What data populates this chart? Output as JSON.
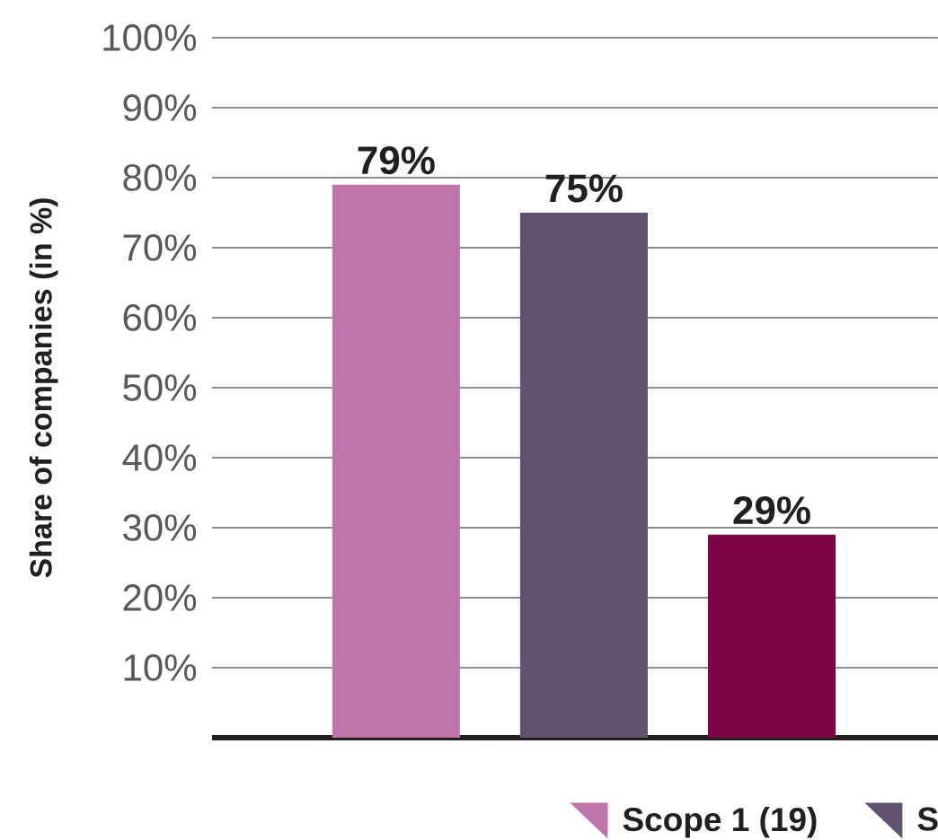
{
  "chart_data": {
    "type": "bar",
    "ylabel": "Share of companies (in %)",
    "categories": [
      null
    ],
    "series": [
      {
        "name": "Scope 1 (19)",
        "color": "#bf75a9",
        "values": [
          79
        ],
        "value_labels": [
          "79%"
        ]
      },
      {
        "name": "S",
        "color": "#605270",
        "values": [
          75
        ],
        "value_labels": [
          "75%"
        ]
      },
      {
        "color": "#7d0545",
        "values": [
          29
        ],
        "value_labels": [
          "29%"
        ]
      }
    ],
    "ylim": [
      0,
      100
    ],
    "yticks": [
      {
        "value": 10,
        "label": "10%"
      },
      {
        "value": 20,
        "label": "20%"
      },
      {
        "value": 30,
        "label": "30%"
      },
      {
        "value": 40,
        "label": "40%"
      },
      {
        "value": 50,
        "label": "50%"
      },
      {
        "value": 60,
        "label": "60%"
      },
      {
        "value": 70,
        "label": "70%"
      },
      {
        "value": 80,
        "label": "80%"
      },
      {
        "value": 90,
        "label": "90%"
      },
      {
        "value": 100,
        "label": "100%"
      }
    ],
    "grid": "y",
    "legend": "bottom"
  }
}
